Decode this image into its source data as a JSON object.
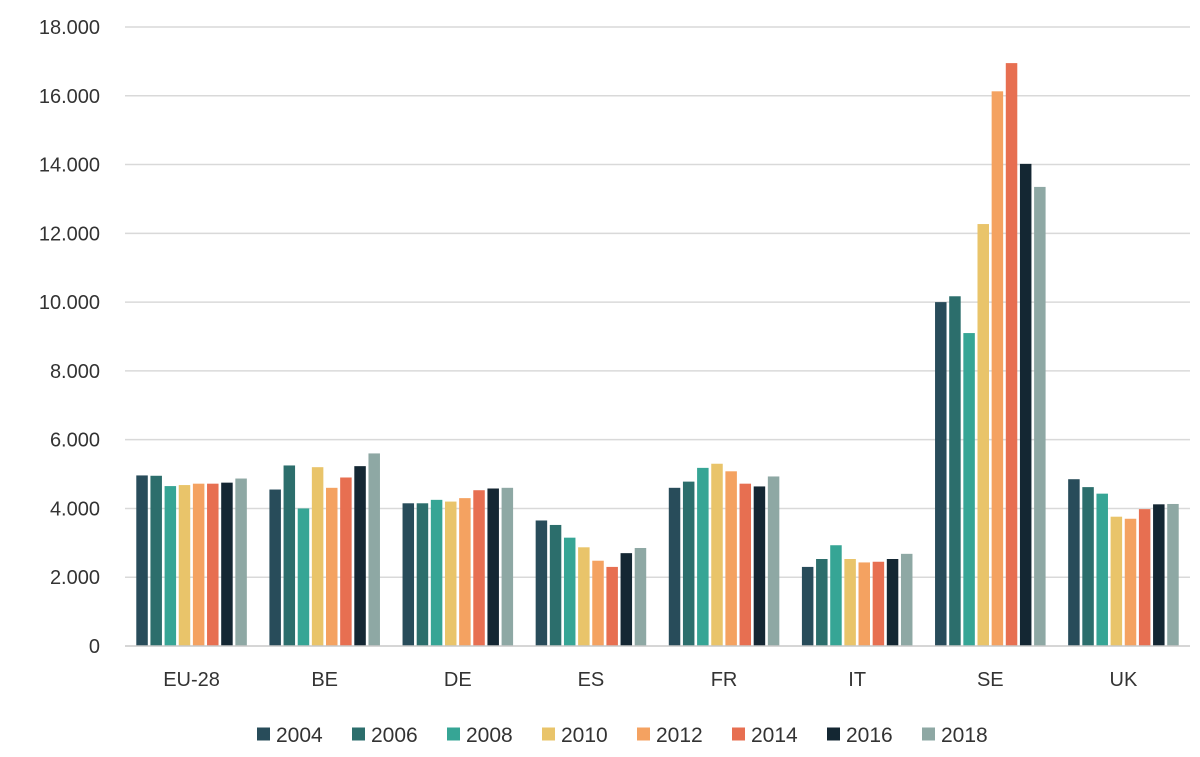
{
  "chart_data": {
    "type": "bar",
    "title": "",
    "xlabel": "",
    "ylabel": "",
    "ylim": [
      0,
      18000
    ],
    "y_ticks": [
      "0",
      "2.000",
      "4.000",
      "6.000",
      "8.000",
      "10.000",
      "12.000",
      "14.000",
      "16.000",
      "18.000"
    ],
    "grid": true,
    "legend_position": "bottom",
    "categories": [
      "EU-28",
      "BE",
      "DE",
      "ES",
      "FR",
      "IT",
      "SE",
      "UK"
    ],
    "series": [
      {
        "name": "2004",
        "color": "#284c5a",
        "values": [
          4960,
          4550,
          4150,
          3650,
          4600,
          2300,
          10000,
          4850
        ]
      },
      {
        "name": "2006",
        "color": "#2c6e6c",
        "values": [
          4950,
          5250,
          4150,
          3520,
          4780,
          2530,
          10170,
          4620
        ]
      },
      {
        "name": "2008",
        "color": "#36a595",
        "values": [
          4650,
          4000,
          4250,
          3150,
          5180,
          2930,
          9100,
          4430
        ]
      },
      {
        "name": "2010",
        "color": "#e9c46a",
        "values": [
          4680,
          5200,
          4200,
          2870,
          5300,
          2530,
          12270,
          3760
        ]
      },
      {
        "name": "2012",
        "color": "#f4a261",
        "values": [
          4720,
          4600,
          4300,
          2480,
          5080,
          2430,
          16130,
          3700
        ]
      },
      {
        "name": "2014",
        "color": "#e76f51",
        "values": [
          4720,
          4900,
          4530,
          2300,
          4720,
          2450,
          16950,
          3980
        ]
      },
      {
        "name": "2016",
        "color": "#142733",
        "values": [
          4750,
          5230,
          4580,
          2700,
          4640,
          2530,
          14020,
          4120
        ]
      },
      {
        "name": "2018",
        "color": "#8ea8a4",
        "values": [
          4870,
          5600,
          4600,
          2850,
          4930,
          2680,
          13350,
          4130
        ]
      }
    ]
  }
}
